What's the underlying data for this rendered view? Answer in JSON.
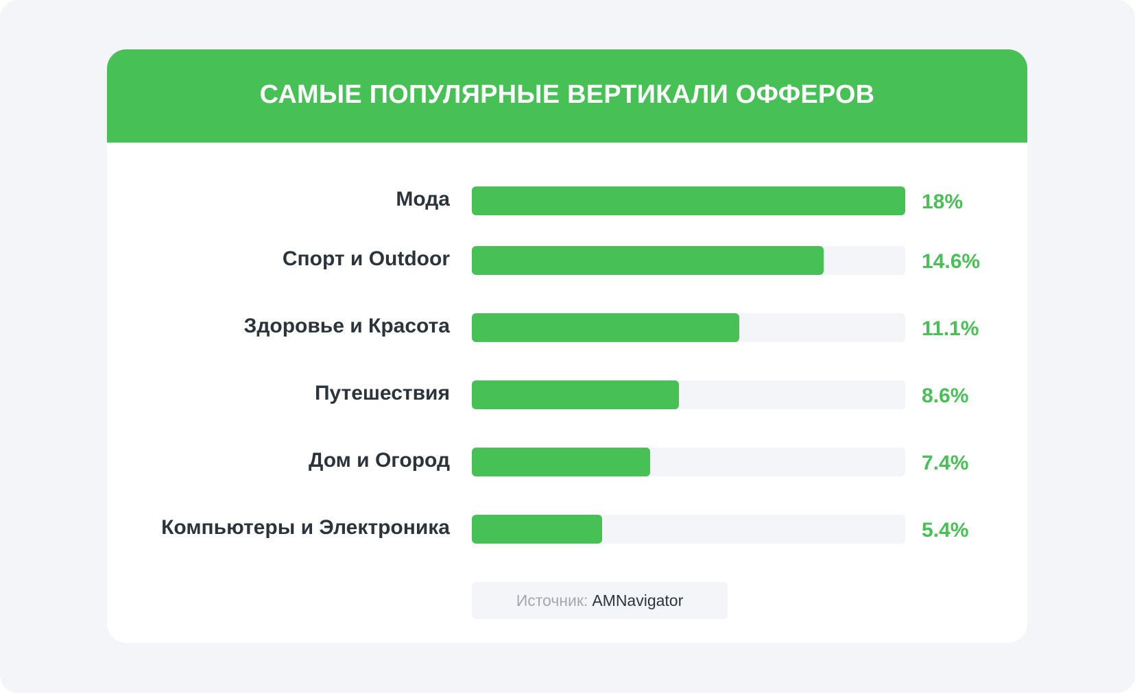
{
  "title": "САМЫЕ ПОПУЛЯРНЫЕ ВЕРТИКАЛИ ОФФЕРОВ",
  "colors": {
    "accent": "#47c055",
    "track": "#f4f5f9",
    "text": "#2b343b"
  },
  "source": {
    "label": "Источник:",
    "name": "AMNavigator"
  },
  "chart_data": {
    "type": "bar",
    "orientation": "horizontal",
    "categories": [
      "Мода",
      "Спорт и Outdoor",
      "Здоровье и Красота",
      "Путешествия",
      "Дом и Огород",
      "Компьютеры и Электроника"
    ],
    "values": [
      18,
      14.6,
      11.1,
      8.6,
      7.4,
      5.4
    ],
    "value_labels": [
      "18%",
      "14.6%",
      "11.1%",
      "8.6%",
      "7.4%",
      "5.4%"
    ],
    "xlim": [
      0,
      18
    ],
    "grid": false
  }
}
